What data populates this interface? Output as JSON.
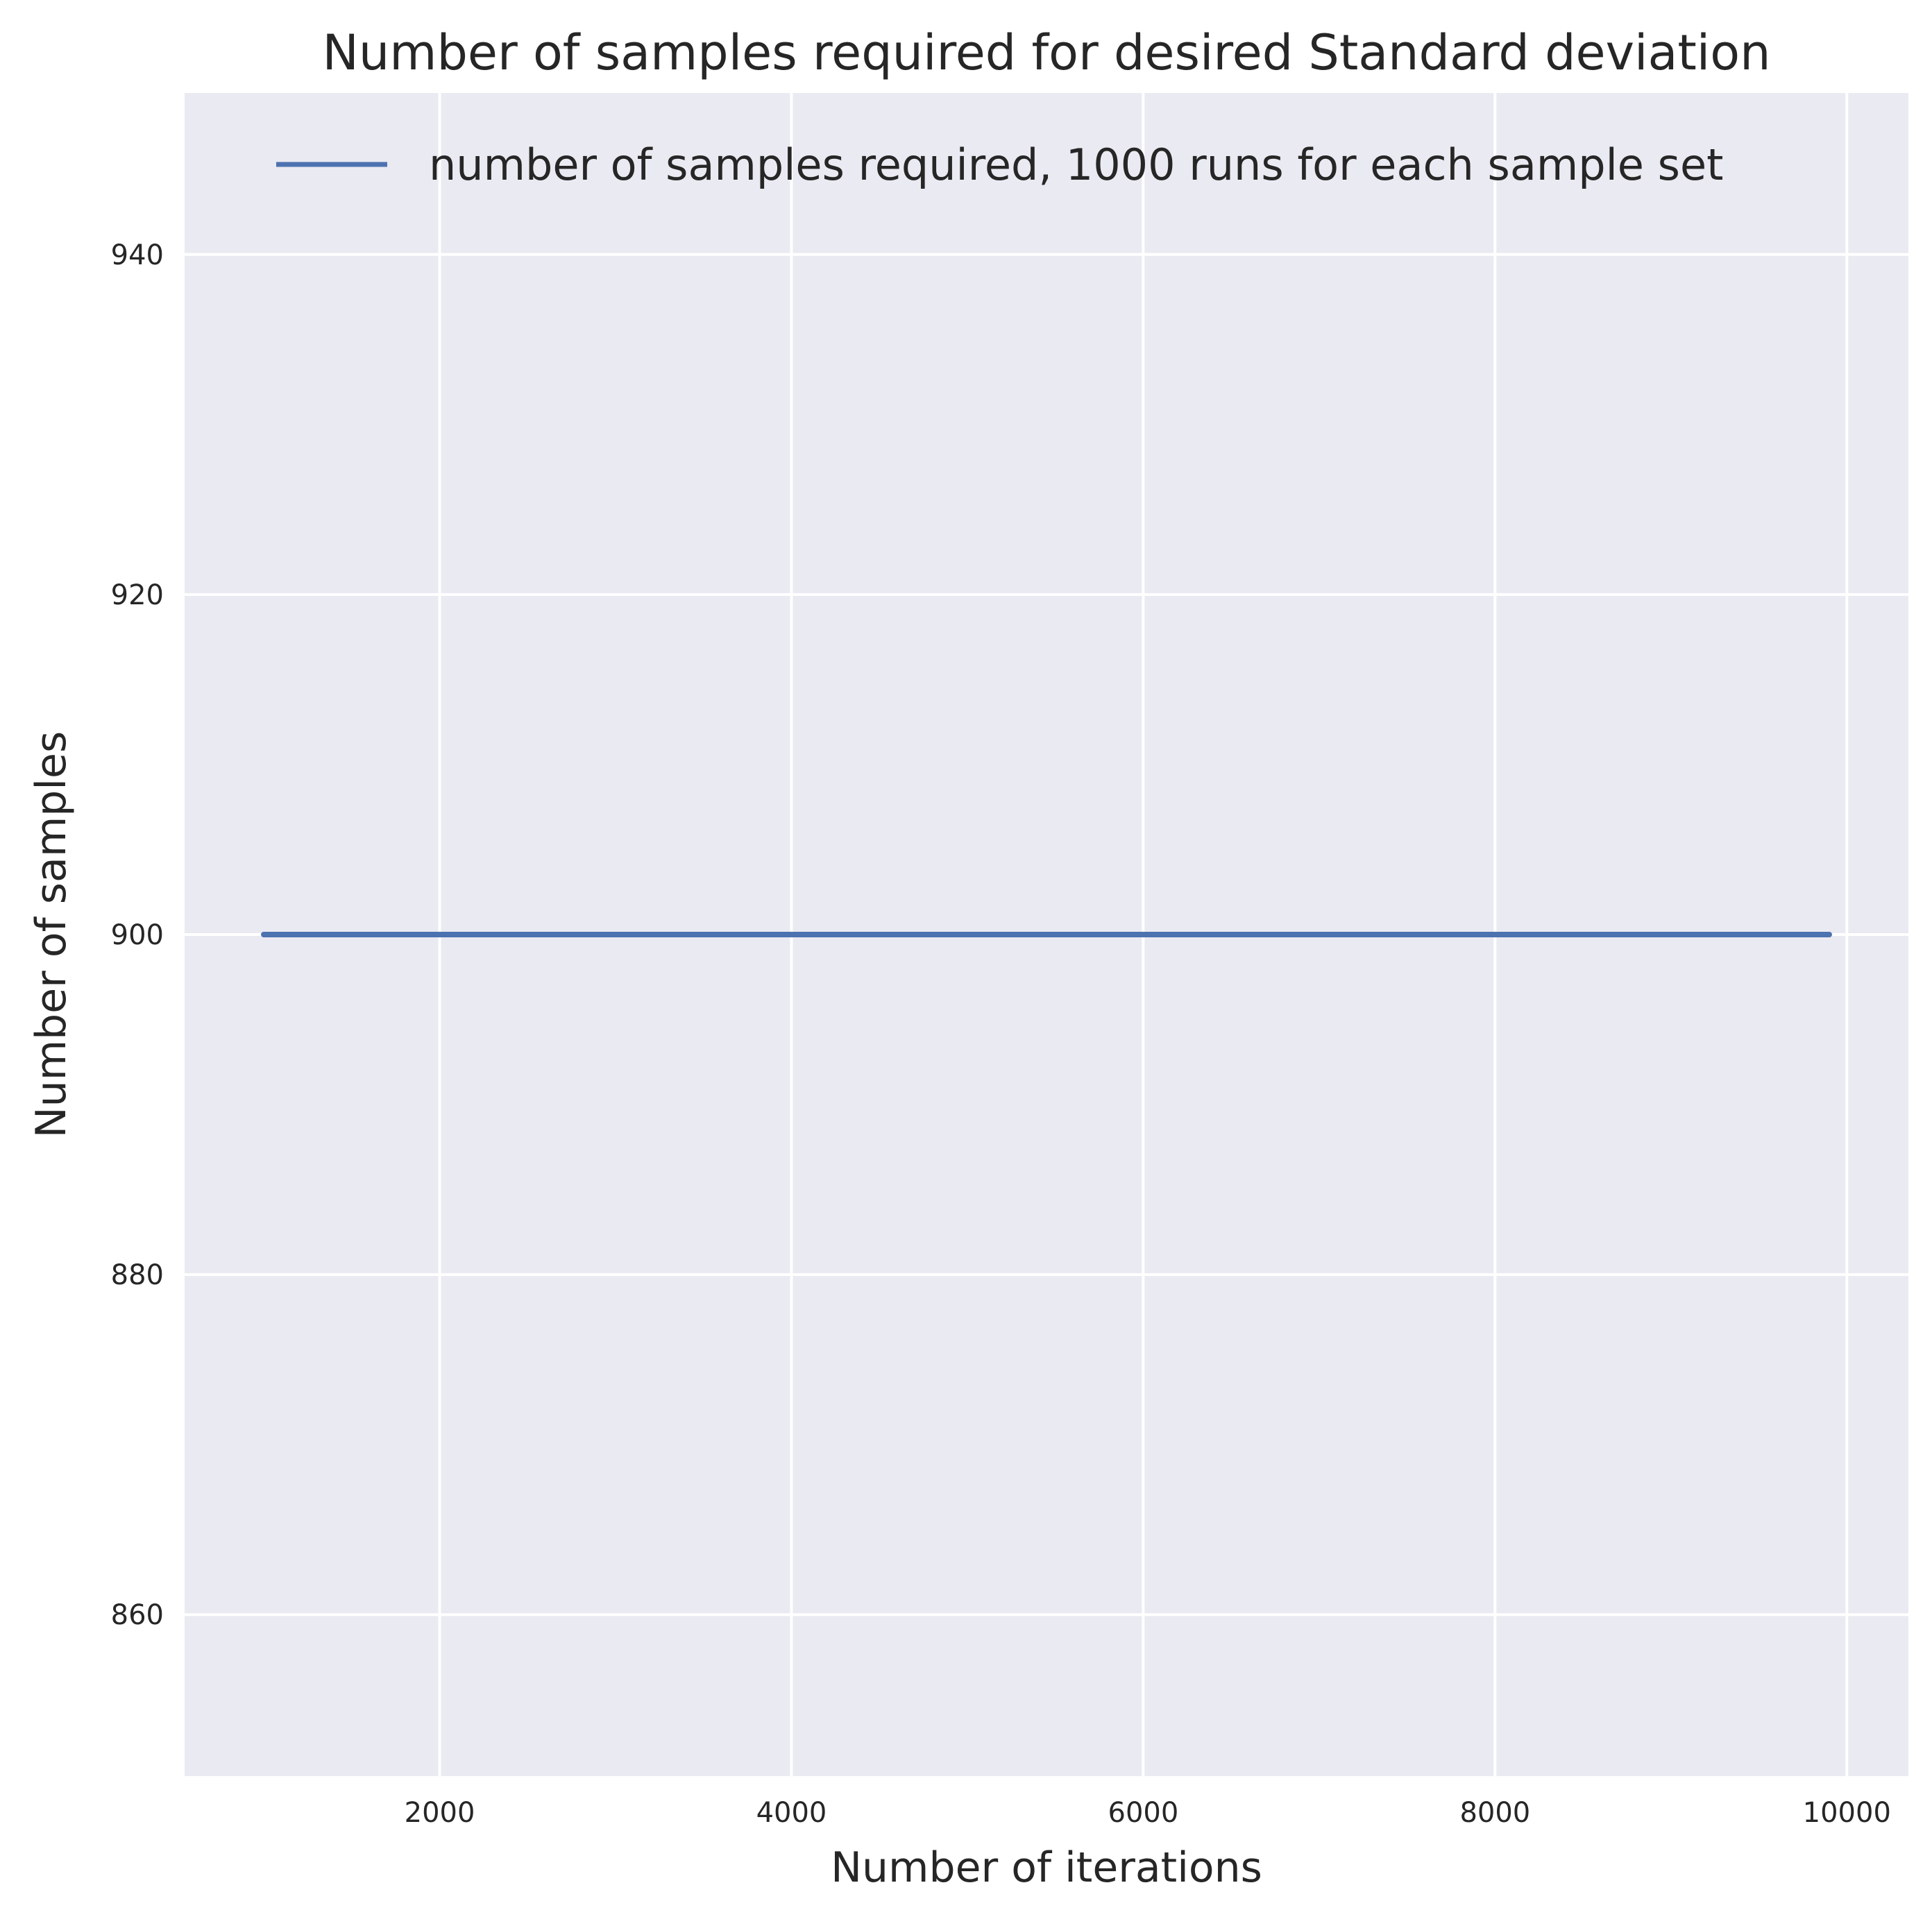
{
  "chart_data": {
    "type": "line",
    "title": "Number of samples required for desired Standard deviation",
    "xlabel": "Number of iterations",
    "ylabel": "Number of samples",
    "xlim": [
      550,
      10350
    ],
    "ylim": [
      850.5,
      949.5
    ],
    "xticks": [
      2000,
      4000,
      6000,
      8000,
      10000
    ],
    "yticks": [
      860,
      880,
      900,
      920,
      940
    ],
    "grid": true,
    "legend_position": "top-right",
    "colors": {
      "background": "#eaeaf2",
      "grid": "#ffffff",
      "series": "#4c72b0"
    },
    "series": [
      {
        "name": "number of samples required, 1000 runs for each sample set",
        "x": [
          1000,
          9900
        ],
        "y": [
          900,
          900
        ]
      }
    ]
  }
}
